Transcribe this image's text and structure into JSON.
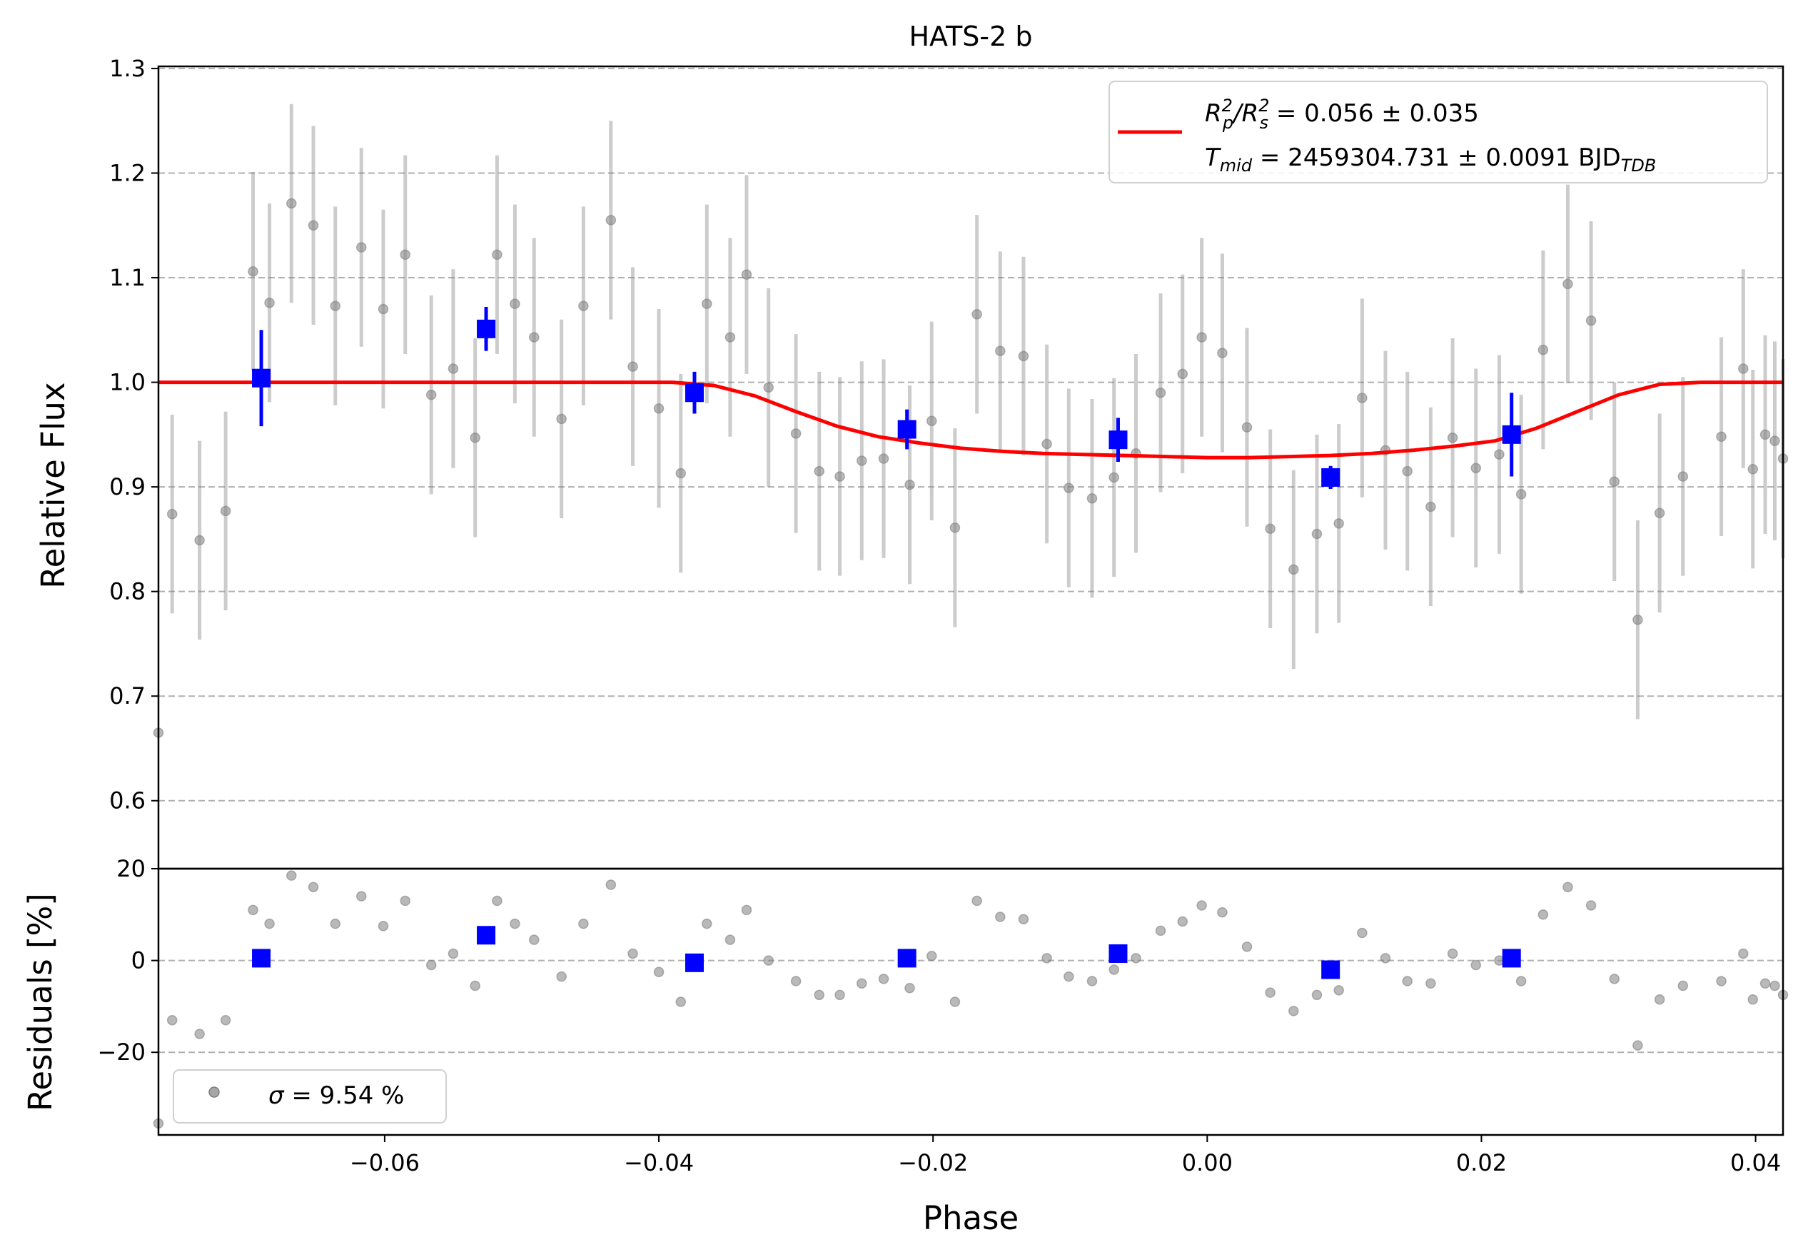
{
  "chart_data": [
    {
      "type": "scatter",
      "title": "HATS-2 b",
      "xlabel": "",
      "ylabel": "Relative Flux",
      "xlim": [
        -0.0765,
        0.042
      ],
      "ylim": [
        0.535,
        1.302
      ],
      "yticks": [
        0.6,
        0.7,
        0.8,
        0.9,
        1.0,
        1.1,
        1.2,
        1.3
      ],
      "ytick_labels": [
        "0.6",
        "0.7",
        "0.8",
        "0.9",
        "1.0",
        "1.1",
        "1.2",
        "1.3"
      ],
      "grid": "horizontal dashed",
      "legend_position": "top-right",
      "legend": {
        "line1": {
          "main": "R",
          "s1": "2",
          "u1": "p",
          "mid": "/R",
          "s2": "2",
          "u2": "s",
          "tail": " = 0.056 ± 0.035"
        },
        "line2": {
          "main": "T",
          "u1": "mid",
          "tail": " = 2459304.731 ± 0.0091 BJD",
          "u2": "TDB"
        }
      },
      "series": [
        {
          "kind": "raw",
          "color": "#808080",
          "points": [
            [
              -0.0765,
              0.665,
              0
            ],
            [
              -0.0755,
              0.874,
              0.095
            ],
            [
              -0.0735,
              0.849,
              0.095
            ],
            [
              -0.0716,
              0.877,
              0.095
            ],
            [
              -0.0696,
              1.106,
              0.095
            ],
            [
              -0.0684,
              1.076,
              0.095
            ],
            [
              -0.0668,
              1.171,
              0.095
            ],
            [
              -0.0652,
              1.15,
              0.095
            ],
            [
              -0.0636,
              1.073,
              0.095
            ],
            [
              -0.0617,
              1.129,
              0.095
            ],
            [
              -0.0601,
              1.07,
              0.095
            ],
            [
              -0.0585,
              1.122,
              0.095
            ],
            [
              -0.0566,
              0.988,
              0.095
            ],
            [
              -0.055,
              1.013,
              0.095
            ],
            [
              -0.0534,
              0.947,
              0.095
            ],
            [
              -0.0518,
              1.122,
              0.095
            ],
            [
              -0.0505,
              1.075,
              0.095
            ],
            [
              -0.0491,
              1.043,
              0.095
            ],
            [
              -0.0471,
              0.965,
              0.095
            ],
            [
              -0.0455,
              1.073,
              0.095
            ],
            [
              -0.0435,
              1.155,
              0.095
            ],
            [
              -0.0419,
              1.015,
              0.095
            ],
            [
              -0.04,
              0.975,
              0.095
            ],
            [
              -0.0384,
              0.913,
              0.095
            ],
            [
              -0.0365,
              1.075,
              0.095
            ],
            [
              -0.0348,
              1.043,
              0.095
            ],
            [
              -0.0336,
              1.103,
              0.095
            ],
            [
              -0.032,
              0.995,
              0.095
            ],
            [
              -0.03,
              0.951,
              0.095
            ],
            [
              -0.0283,
              0.915,
              0.095
            ],
            [
              -0.0268,
              0.91,
              0.095
            ],
            [
              -0.0252,
              0.925,
              0.095
            ],
            [
              -0.0236,
              0.927,
              0.095
            ],
            [
              -0.0217,
              0.902,
              0.095
            ],
            [
              -0.0201,
              0.963,
              0.095
            ],
            [
              -0.0184,
              0.861,
              0.095
            ],
            [
              -0.0168,
              1.065,
              0.095
            ],
            [
              -0.0151,
              1.03,
              0.095
            ],
            [
              -0.0134,
              1.025,
              0.095
            ],
            [
              -0.0117,
              0.941,
              0.095
            ],
            [
              -0.0101,
              0.899,
              0.095
            ],
            [
              -0.0084,
              0.889,
              0.095
            ],
            [
              -0.0068,
              0.909,
              0.095
            ],
            [
              -0.0052,
              0.932,
              0.095
            ],
            [
              -0.0034,
              0.99,
              0.095
            ],
            [
              -0.0018,
              1.008,
              0.095
            ],
            [
              -0.0004,
              1.043,
              0.095
            ],
            [
              0.0011,
              1.028,
              0.095
            ],
            [
              0.0029,
              0.957,
              0.095
            ],
            [
              0.0046,
              0.86,
              0.095
            ],
            [
              0.0063,
              0.821,
              0.095
            ],
            [
              0.008,
              0.855,
              0.095
            ],
            [
              0.0096,
              0.865,
              0.095
            ],
            [
              0.0113,
              0.985,
              0.095
            ],
            [
              0.013,
              0.935,
              0.095
            ],
            [
              0.0146,
              0.915,
              0.095
            ],
            [
              0.0163,
              0.881,
              0.095
            ],
            [
              0.0179,
              0.947,
              0.095
            ],
            [
              0.0196,
              0.918,
              0.095
            ],
            [
              0.0213,
              0.931,
              0.095
            ],
            [
              0.0229,
              0.893,
              0.095
            ],
            [
              0.0245,
              1.031,
              0.095
            ],
            [
              0.0263,
              1.094,
              0.095
            ],
            [
              0.028,
              1.059,
              0.095
            ],
            [
              0.0297,
              0.905,
              0.095
            ],
            [
              0.0314,
              0.773,
              0.095
            ],
            [
              0.033,
              0.875,
              0.095
            ],
            [
              0.0347,
              0.91,
              0.095
            ],
            [
              0.0375,
              0.948,
              0.095
            ],
            [
              0.0391,
              1.013,
              0.095
            ],
            [
              0.0407,
              0.95,
              0.095
            ],
            [
              0.0414,
              0.944,
              0.095
            ],
            [
              0.0398,
              0.917,
              0.095
            ],
            [
              0.042,
              0.927,
              0.095
            ]
          ]
        },
        {
          "kind": "binned",
          "color": "#0000ff",
          "points": [
            [
              -0.069,
              1.004,
              0.046
            ],
            [
              -0.0526,
              1.051,
              0.021
            ],
            [
              -0.0374,
              0.99,
              0.02
            ],
            [
              -0.0219,
              0.955,
              0.019
            ],
            [
              -0.0065,
              0.945,
              0.021
            ],
            [
              0.009,
              0.909,
              0.011
            ],
            [
              0.0222,
              0.95,
              0.04
            ]
          ]
        },
        {
          "kind": "model",
          "color": "#ff0000",
          "x": [
            -0.0765,
            -0.039,
            -0.036,
            -0.033,
            -0.03,
            -0.027,
            -0.024,
            -0.021,
            -0.018,
            -0.015,
            -0.012,
            -0.009,
            -0.006,
            -0.003,
            0.0,
            0.003,
            0.006,
            0.009,
            0.012,
            0.015,
            0.018,
            0.021,
            0.024,
            0.027,
            0.03,
            0.033,
            0.036,
            0.042
          ],
          "y": [
            1.0,
            1.0,
            0.997,
            0.987,
            0.972,
            0.958,
            0.948,
            0.942,
            0.937,
            0.934,
            0.932,
            0.931,
            0.93,
            0.929,
            0.928,
            0.928,
            0.929,
            0.93,
            0.932,
            0.935,
            0.939,
            0.944,
            0.956,
            0.972,
            0.988,
            0.998,
            1.0,
            1.0
          ]
        }
      ]
    },
    {
      "type": "scatter",
      "title": "",
      "xlabel": "Phase",
      "ylabel": "Residuals [%]",
      "xlim": [
        -0.0765,
        0.042
      ],
      "ylim": [
        -38,
        20
      ],
      "xticks": [
        -0.06,
        -0.04,
        -0.02,
        0.0,
        0.02,
        0.04
      ],
      "xtick_labels": [
        "−0.06",
        "−0.04",
        "−0.02",
        "0.00",
        "0.02",
        "0.04"
      ],
      "yticks": [
        -20,
        0,
        20
      ],
      "ytick_labels": [
        "−20",
        "0",
        "20"
      ],
      "grid": "horizontal dashed",
      "legend_position": "bottom-left",
      "legend": {
        "symbol": "σ",
        "text": " = 9.54 %"
      },
      "series": [
        {
          "kind": "raw",
          "color": "#808080",
          "points": [
            [
              -0.0765,
              -35.5
            ],
            [
              -0.0755,
              -13.0
            ],
            [
              -0.0735,
              -16.0
            ],
            [
              -0.0716,
              -13.0
            ],
            [
              -0.0696,
              11.0
            ],
            [
              -0.0684,
              8.0
            ],
            [
              -0.0668,
              18.5
            ],
            [
              -0.0652,
              16.0
            ],
            [
              -0.0636,
              8.0
            ],
            [
              -0.0617,
              14.0
            ],
            [
              -0.0601,
              7.5
            ],
            [
              -0.0585,
              13.0
            ],
            [
              -0.0566,
              -1.0
            ],
            [
              -0.055,
              1.5
            ],
            [
              -0.0534,
              -5.5
            ],
            [
              -0.0518,
              13.0
            ],
            [
              -0.0505,
              8.0
            ],
            [
              -0.0491,
              4.5
            ],
            [
              -0.0471,
              -3.5
            ],
            [
              -0.0455,
              8.0
            ],
            [
              -0.0435,
              16.5
            ],
            [
              -0.0419,
              1.5
            ],
            [
              -0.04,
              -2.5
            ],
            [
              -0.0384,
              -9.0
            ],
            [
              -0.0365,
              8.0
            ],
            [
              -0.0348,
              4.5
            ],
            [
              -0.0336,
              11.0
            ],
            [
              -0.032,
              0.0
            ],
            [
              -0.03,
              -4.5
            ],
            [
              -0.0283,
              -7.5
            ],
            [
              -0.0268,
              -7.5
            ],
            [
              -0.0252,
              -5.0
            ],
            [
              -0.0236,
              -4.0
            ],
            [
              -0.0217,
              -6.0
            ],
            [
              -0.0201,
              1.0
            ],
            [
              -0.0184,
              -9.0
            ],
            [
              -0.0168,
              13.0
            ],
            [
              -0.0151,
              9.5
            ],
            [
              -0.0134,
              9.0
            ],
            [
              -0.0117,
              0.5
            ],
            [
              -0.0101,
              -3.5
            ],
            [
              -0.0084,
              -4.5
            ],
            [
              -0.0068,
              -2.0
            ],
            [
              -0.0052,
              0.5
            ],
            [
              -0.0034,
              6.5
            ],
            [
              -0.0018,
              8.5
            ],
            [
              -0.0004,
              12.0
            ],
            [
              0.0011,
              10.5
            ],
            [
              0.0029,
              3.0
            ],
            [
              0.0046,
              -7.0
            ],
            [
              0.0063,
              -11.0
            ],
            [
              0.008,
              -7.5
            ],
            [
              0.0096,
              -6.5
            ],
            [
              0.0113,
              6.0
            ],
            [
              0.013,
              0.5
            ],
            [
              0.0146,
              -4.5
            ],
            [
              0.0163,
              -5.0
            ],
            [
              0.0179,
              1.5
            ],
            [
              0.0196,
              -1.0
            ],
            [
              0.0213,
              0.0
            ],
            [
              0.0229,
              -4.5
            ],
            [
              0.0245,
              10.0
            ],
            [
              0.0263,
              16.0
            ],
            [
              0.028,
              12.0
            ],
            [
              0.0297,
              -4.0
            ],
            [
              0.0314,
              -18.5
            ],
            [
              0.033,
              -8.5
            ],
            [
              0.0347,
              -5.5
            ],
            [
              0.0375,
              -4.5
            ],
            [
              0.0391,
              1.5
            ],
            [
              0.0407,
              -5.0
            ],
            [
              0.0414,
              -5.5
            ],
            [
              0.0398,
              -8.5
            ],
            [
              0.042,
              -7.5
            ]
          ]
        },
        {
          "kind": "binned",
          "color": "#0000ff",
          "points": [
            [
              -0.069,
              0.5
            ],
            [
              -0.0526,
              5.5
            ],
            [
              -0.0374,
              -0.5
            ],
            [
              -0.0219,
              0.5
            ],
            [
              -0.0065,
              1.5
            ],
            [
              0.009,
              -2.0
            ],
            [
              0.0222,
              0.5
            ]
          ]
        }
      ]
    }
  ]
}
